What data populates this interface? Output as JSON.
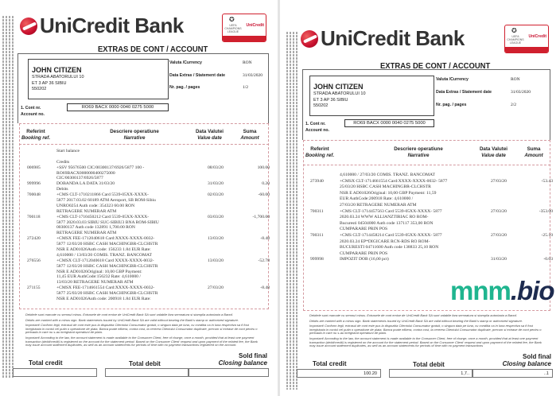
{
  "brand": {
    "name": "UniCredit Bank",
    "badge_brand": "UniCredit",
    "badge_text": "UEFA CHAMPIONS LEAGUE",
    "accent": "#c8102e"
  },
  "pages": [
    {
      "title": "EXTRAS DE CONT / ACCOUNT",
      "customer": {
        "name": "JOHN CITIZEN",
        "address": [
          "STRADA ABATORULUI 10",
          "ET 3 AP 36 SIBIU",
          "550202"
        ]
      },
      "info": [
        {
          "label": "Valuta /Currency",
          "value": "RON"
        },
        {
          "label": "Data Extras / Statement date",
          "value": "31/03/2020"
        },
        {
          "label": "Nr. pag. / pages",
          "value": "1/2"
        }
      ],
      "account": {
        "label1": "1. Cont nr.",
        "label2": "Account no.",
        "value": "RO69 BACX 0000 0040 0275 5000"
      },
      "headers": {
        "ref": "Referint",
        "ref_en": "Booking ref.",
        "desc": "Descriere operatiune",
        "desc_en": "Narrative",
        "date": "Data Valutei",
        "date_en": "Value date",
        "amount": "Suma",
        "amount_en": "Amount"
      },
      "entries": [
        {
          "lines": [
            "Start balance"
          ]
        },
        {
          "lines": [
            ""
          ]
        },
        {
          "lines": [
            "Credits"
          ]
        },
        {
          "ref": "006985",
          "date": "08/03/20",
          "amount": "100.00",
          "lines": [
            "+SSV 95676500 CIC/00300137/6926/5877 100 -",
            "RO69BACX0000000400275000",
            "CIC/00300137/6926/5877"
          ]
        },
        {
          "ref": "999996",
          "date": "31/03/20",
          "amount": "0.20",
          "lines": [
            "DOBANDA LA DATA 31/03/20"
          ]
        },
        {
          "lines": [
            "Debits"
          ]
        },
        {
          "ref": "700048",
          "date": "02/03/20",
          "amount": "-60.00",
          "lines": [
            "+CMS CLT-1710211866 Card 5539-05XX-XXXX-",
            "5877 2017.03.02 60189 ATM Aeroport, SB ROM-Sibiu",
            "UNRO0254   Auth code: 354323      60.00 RON",
            "RETRAGERE NUMERAR ATM"
          ]
        },
        {
          "ref": "700118",
          "date": "03/03/20",
          "amount": "-1,700.00",
          "lines": [
            "+CMS CLT-1710450212 Card 5539-05XX-XXXX-",
            "5877 2020.03.03 SIBIU SUC-SIBIU3 BNA ROM-SIBIU",
            "00300137          Auth code 132891          1,700.00 RON",
            "RETRAGERE NUMERAR ATM"
          ]
        },
        {
          "ref": "272420",
          "date": "13/03/20",
          "amount": "-8.48",
          "lines": [
            "+CMSX FEE-1712040618 Card:XXXX-XXXX-0032-",
            "5877 12/03/20 HSBC CASH MACHINGBR-CLCHSTR",
            "NSR E AD01026Auth code: 156233 1.84 EUR Rate:",
            "4,610000 / 13/03/20 COMIS. TRANZ. BANCOMAT"
          ]
        },
        {
          "ref": "276556",
          "date": "13/03/20",
          "amount": "-52.78",
          "lines": [
            "+CMSX CLT-1712040618 Card XXXX-XXXX-0032-",
            "5877 12/03/20 HSBC CASH MACHINGBR-CLCHSTR",
            "NSR E AD01026Original: 10,00 GBP        Payment:",
            "11,45 EUR AuthCode:156232 Rate: 4,610000 /",
            "13/03/20 RETRAGERE NUMERAR ATM"
          ]
        },
        {
          "ref": "271155",
          "date": "27/03/20",
          "amount": "-8.48",
          "lines": [
            "+CMSX FEE-1714661554 Card:XXXX-XXXX-0032-",
            "5877 25/03/20 HSBC CASH MACHINGBR-CLCHSTR",
            "NSR E AD01026Auth code: 200918 1.84 EUR Rate:"
          ]
        }
      ],
      "footer": [
        "Debitele sunt marcate cu semnul minus. Extrasele de cont emise de UniCredit Bank SA sunt valabile fara semnatura si stampila autorizata a Bancii.",
        "Debits are marked with a minus sign. Bank statements issued by UniCredit Bank SA are valid without bearing the Bank's stamp or authorized signature.",
        "Important! Conform legii, extrasul de cont este pus la dispozitia Clientului Consumator gratuit, o singura data pe luna, cu conditia ca in luna respectiva sa fi fost inregistrata in contul cel putin o operatiune de plata. Banca poate elibera, contra cost, la cererea Clientului Consumator duplicate, precum si extrase de cont pentru o perioada in care nu s-au inregistrat operatiuni de plata.",
        "Important! According to the law, the account statement is made available to the Consumer Client, free of charge, once a month, provided that at least one payment transaction (debit/credit) is registered on the account for the statement period. Based on the Consumer Client' request and upon payment of the related fee, the Bank may issue account statement duplicates, as well as an account statements for periods of time with no payment transactions registered on the account."
      ],
      "totals": {
        "credit_label": "Total credit",
        "debit_label": "Total debit",
        "closing_label": "Sold final",
        "closing_label_en": "Closing balance",
        "credit": "",
        "debit": "",
        "closing": ""
      }
    },
    {
      "title": "EXTRAS DE CONT / ACCOUNT",
      "customer": {
        "name": "JOHN CITIZEN",
        "address": [
          "STRADA ABATORULUI 10",
          "ET 3 AP 36 SIBIU",
          "550202"
        ]
      },
      "info": [
        {
          "label": "Valuta /Currency",
          "value": "RON"
        },
        {
          "label": "Data Extras / Statement date",
          "value": "31/03/2020"
        },
        {
          "label": "Nr. pag. / pages",
          "value": "2/2"
        }
      ],
      "account": {
        "label1": "1. Cont nr.",
        "label2": "Account no.",
        "value": "RO69 BACX 0000 0040 0275 5000"
      },
      "headers": {
        "ref": "Referint",
        "ref_en": "Booking ref.",
        "desc": "Descriere operatiune",
        "desc_en": "Narrative",
        "date": "Data Valutei",
        "date_en": "Value date",
        "amount": "Suma",
        "amount_en": "Amount"
      },
      "entries": [
        {
          "lines": [
            "4,610000 / 27/03/20 COMIS. TRANZ. BANCOMAT"
          ]
        },
        {
          "ref": "273940",
          "date": "27/03/20",
          "amount": "-53.43",
          "lines": [
            "+CMSX CLT-1714661554 Card:XXXX-XXXX-0032- 5877",
            "25/03/20 HSBC CASH MACHINGBR-CLCHSTR",
            "NSR E AD01026Original: 10,00 GBP        Payment: 11,59",
            "EUR AuthCode:200918 Rate: 4,610000 /",
            "27/03/20 RETRAGERE NUMERAR ATM"
          ]
        },
        {
          "ref": "700311",
          "date": "27/03/20",
          "amount": "-353.00",
          "lines": [
            "+CMS CLT-1714457563 Card 5539-05XX-XXXX- 5877",
            "2020.03.24 WWW ALLIANZTIRIAC RO ROM-",
            "Bucuresti 04504000 Auth code 137117 353,00 RON",
            "CUMPARARE PRIN POS"
          ]
        },
        {
          "ref": "700311",
          "date": "27/03/20",
          "amount": "-25.10",
          "lines": [
            "+CMS CLT-1714458214 Card 5539-05XX-XXXX- 5877",
            "2020.03.24 EP*DIGICARE RCN-RDS RO ROM-",
            "BUCURESTI 04711600 Auth code 138833 25,10 RON",
            "CUMPARARE PRIN POS"
          ]
        },
        {
          "ref": "999998",
          "date": "31/03/20",
          "amount": "-0.03",
          "lines": [
            "IMPOZIT DOB (16,00 pct)"
          ]
        }
      ],
      "footer": [
        "Debitele sunt marcate cu semnul minus. Extrasele de cont emise de UniCredit Bank SA sunt valabile fara semnatura si stampila autorizata a Bancii.",
        "Debits are marked with a minus sign. Bank statements issued by UniCredit Bank SA are valid without bearing the Bank's stamp or authorized signature.",
        "Important! Conform legii, extrasul de cont este pus la dispozitia Clientului Consumator gratuit, o singura data pe luna, cu conditia ca in luna respectiva sa fi fost inregistrata in contul cel putin o operatiune de plata. Banca poate elibera, contra cost, la cererea Clientului Consumator duplicate, precum si extrase de cont pentru o perioada in care nu s-au inregistrat operatiuni de plata.",
        "Important! According to the law, the account statement is made available to the Consumer Client, free of charge, once a month, provided that at least one payment transaction (debit/credit) is registered on the account for the statement period. Based on the Consumer Client' request and upon payment of the related fee, the Bank may issue account statement duplicates, as well as an account statements for periods of time with no payment transactions"
      ],
      "totals": {
        "credit_label": "Total credit",
        "debit_label": "Total debit",
        "closing_label": "Sold final",
        "closing_label_en": "Closing balance",
        "credit": "100.20",
        "debit": "1,7..",
        "closing": "..1"
      }
    }
  ],
  "watermark": {
    "part1": "mnm",
    "part2": ".bio"
  }
}
